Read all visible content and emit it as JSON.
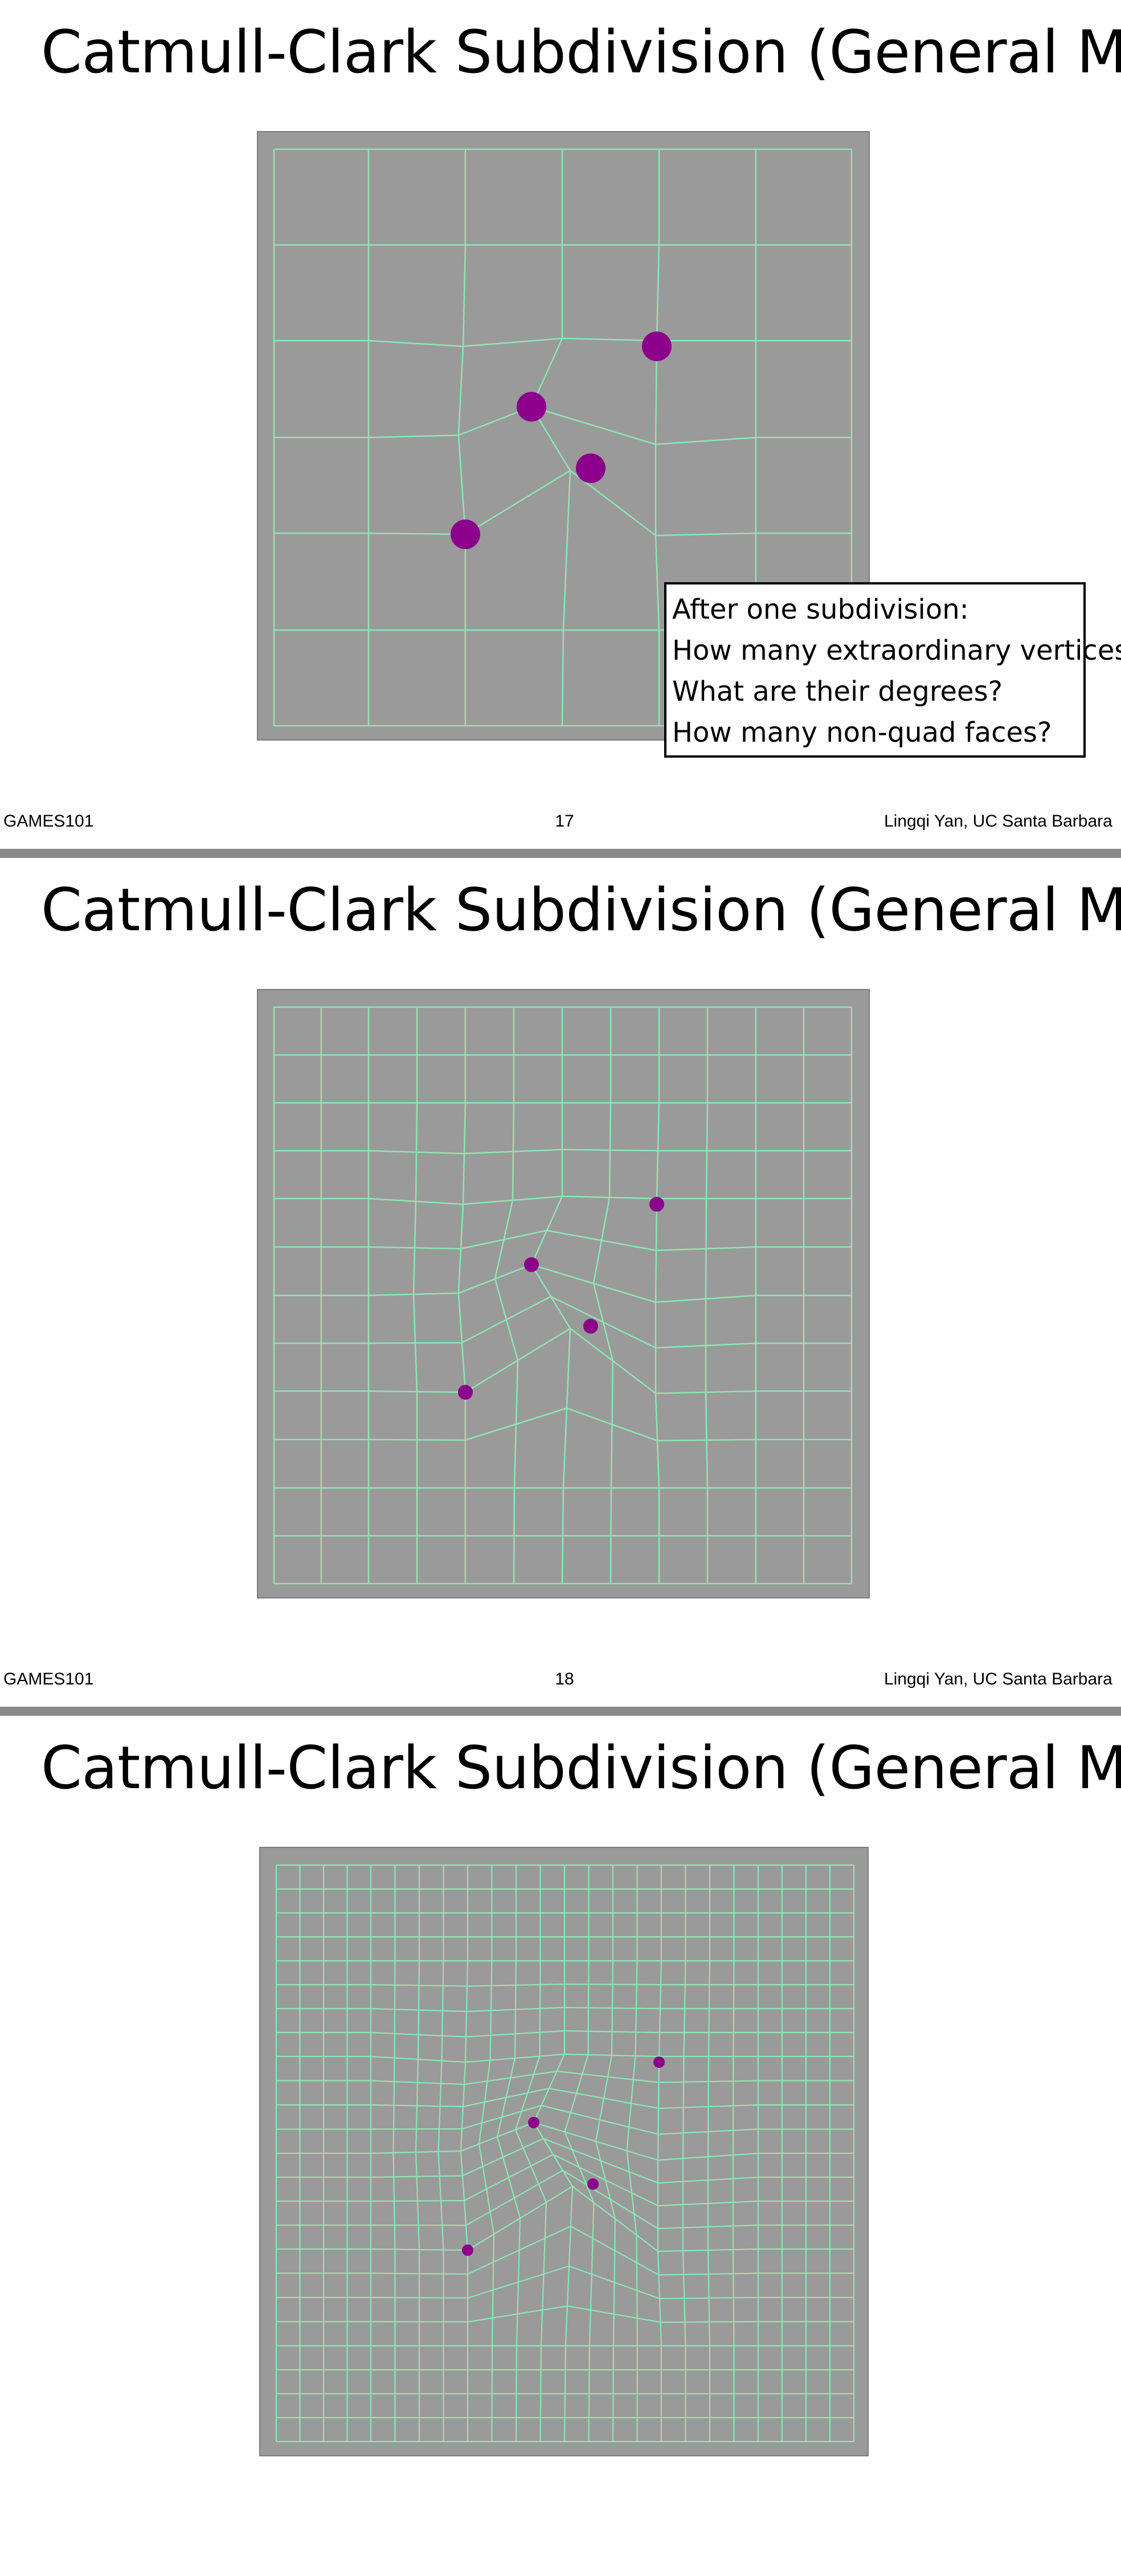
{
  "slides": [
    {
      "title": "Catmull-Clark Subdivision (General Mesh)",
      "page_number": "17",
      "footer_left": "GAMES101",
      "footer_right": "Lingqi Yan, UC Santa Barbara",
      "question_box": {
        "lines": [
          "After one subdivision:",
          "How many extraordinary vertices?",
          "What are their degrees?",
          "How many non-quad faces?"
        ]
      },
      "subdivision_level": 0
    },
    {
      "title": "Catmull-Clark Subdivision (General Mesh)",
      "page_number": "18",
      "footer_left": "GAMES101",
      "footer_right": "Lingqi Yan, UC Santa Barbara",
      "subdivision_level": 1
    },
    {
      "title": "Catmull-Clark Subdivision (General Mesh)",
      "subdivision_level": 2
    }
  ],
  "colors": {
    "mesh_background": "#9a9a9a",
    "mesh_lines": "#8ee6b4",
    "extraordinary_vertex": "#8b008b"
  }
}
